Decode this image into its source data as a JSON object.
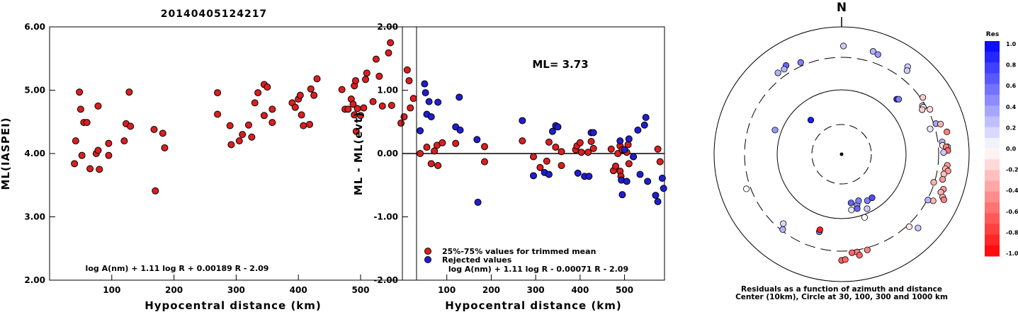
{
  "title": "20140405124217",
  "colors": {
    "red": "#dc1e1e",
    "blue": "#1e1ed2"
  },
  "chart_data": [
    {
      "type": "scatter",
      "xlabel": "Hypocentral distance (km)",
      "ylabel": "ML(IASPEI)",
      "xlim": [
        0,
        590
      ],
      "ylim": [
        2.0,
        6.0
      ],
      "x_ticks": [
        "100",
        "200",
        "300",
        "400",
        "500"
      ],
      "y_ticks": [
        "2.00",
        "3.00",
        "4.00",
        "5.00",
        "6.00"
      ],
      "equation": "log A(nm) + 1.11 log R + 0.00189 R - 2.09",
      "series": [
        {
          "color": "red",
          "points": [
            [
              40,
              3.84
            ],
            [
              42,
              4.2
            ],
            [
              48,
              4.97
            ],
            [
              50,
              4.7
            ],
            [
              52,
              3.97
            ],
            [
              55,
              4.49
            ],
            [
              60,
              4.49
            ],
            [
              65,
              3.76
            ],
            [
              75,
              4.0
            ],
            [
              78,
              4.75
            ],
            [
              78,
              4.05
            ],
            [
              80,
              3.75
            ],
            [
              95,
              4.16
            ],
            [
              95,
              3.97
            ],
            [
              120,
              4.2
            ],
            [
              123,
              4.47
            ],
            [
              128,
              4.97
            ],
            [
              130,
              4.43
            ],
            [
              168,
              4.38
            ],
            [
              170,
              3.41
            ],
            [
              182,
              4.32
            ],
            [
              185,
              4.09
            ],
            [
              270,
              4.62
            ],
            [
              270,
              4.96
            ],
            [
              290,
              4.44
            ],
            [
              292,
              4.14
            ],
            [
              305,
              4.2
            ],
            [
              310,
              4.3
            ],
            [
              320,
              4.45
            ],
            [
              325,
              4.26
            ],
            [
              330,
              4.8
            ],
            [
              335,
              4.96
            ],
            [
              345,
              4.6
            ],
            [
              345,
              5.09
            ],
            [
              350,
              5.05
            ],
            [
              358,
              4.49
            ],
            [
              358,
              4.7
            ],
            [
              390,
              4.8
            ],
            [
              395,
              4.73
            ],
            [
              400,
              4.86
            ],
            [
              403,
              4.92
            ],
            [
              405,
              4.61
            ],
            [
              408,
              4.44
            ],
            [
              418,
              4.46
            ],
            [
              420,
              5.02
            ],
            [
              425,
              4.92
            ],
            [
              430,
              5.18
            ],
            [
              470,
              5.01
            ],
            [
              475,
              4.7
            ],
            [
              480,
              4.7
            ],
            [
              485,
              4.86
            ],
            [
              488,
              4.78
            ],
            [
              490,
              5.07
            ],
            [
              490,
              4.61
            ],
            [
              492,
              5.15
            ],
            [
              493,
              4.35
            ],
            [
              495,
              4.71
            ],
            [
              500,
              4.6
            ],
            [
              505,
              4.72
            ],
            [
              508,
              5.17
            ],
            [
              510,
              5.27
            ],
            [
              520,
              4.82
            ],
            [
              525,
              5.49
            ],
            [
              530,
              5.22
            ],
            [
              535,
              4.75
            ],
            [
              545,
              5.59
            ],
            [
              548,
              5.75
            ],
            [
              550,
              4.76
            ],
            [
              565,
              4.48
            ],
            [
              570,
              4.58
            ],
            [
              575,
              5.32
            ],
            [
              578,
              5.15
            ],
            [
              580,
              4.72
            ],
            [
              585,
              4.87
            ]
          ]
        }
      ]
    },
    {
      "type": "scatter",
      "xlabel": "Hypocentral distance (km)",
      "ylabel": "ML - ML(evt)",
      "xlim": [
        0,
        590
      ],
      "ylim": [
        -2.0,
        2.0
      ],
      "x_ticks": [
        "100",
        "200",
        "300",
        "400",
        "500"
      ],
      "y_ticks": [
        "-2.00",
        "-1.00",
        "0.00",
        "1.00",
        "2.00"
      ],
      "reference_line": 0.0,
      "ml_label": "ML= 3.73",
      "legend": [
        "25%-75% values for trimmed mean",
        "Rejected values"
      ],
      "equation": "log A(nm) + 1.11 log R - 0.00071 R - 2.09",
      "series": [
        {
          "color": "red",
          "name": "25%-75% values for trimmed mean",
          "points": [
            [
              40,
              0.0
            ],
            [
              55,
              0.1
            ],
            [
              65,
              -0.16
            ],
            [
              72,
              0.04
            ],
            [
              78,
              0.13
            ],
            [
              80,
              -0.19
            ],
            [
              90,
              0.17
            ],
            [
              120,
              0.16
            ],
            [
              185,
              0.11
            ],
            [
              185,
              -0.13
            ],
            [
              270,
              0.2
            ],
            [
              295,
              -0.05
            ],
            [
              310,
              -0.22
            ],
            [
              325,
              -0.12
            ],
            [
              330,
              0.18
            ],
            [
              345,
              0.1
            ],
            [
              358,
              0.03
            ],
            [
              358,
              -0.19
            ],
            [
              390,
              0.06
            ],
            [
              393,
              0.12
            ],
            [
              400,
              0.17
            ],
            [
              403,
              0.02
            ],
            [
              418,
              0.02
            ],
            [
              425,
              0.19
            ],
            [
              430,
              0.08
            ],
            [
              470,
              0.07
            ],
            [
              475,
              -0.27
            ],
            [
              480,
              -0.2
            ],
            [
              485,
              0.0
            ],
            [
              490,
              0.12
            ],
            [
              490,
              -0.28
            ],
            [
              492,
              -0.36
            ],
            [
              495,
              0.06
            ],
            [
              505,
              0.02
            ],
            [
              508,
              0.14
            ],
            [
              510,
              -0.16
            ],
            [
              520,
              -0.05
            ],
            [
              575,
              0.07
            ],
            [
              580,
              -0.13
            ]
          ]
        },
        {
          "color": "blue",
          "name": "Rejected values",
          "points": [
            [
              40,
              0.36
            ],
            [
              50,
              1.1
            ],
            [
              52,
              0.96
            ],
            [
              55,
              0.62
            ],
            [
              60,
              0.82
            ],
            [
              65,
              0.58
            ],
            [
              80,
              0.81
            ],
            [
              120,
              0.42
            ],
            [
              128,
              0.89
            ],
            [
              130,
              0.37
            ],
            [
              168,
              0.22
            ],
            [
              170,
              -0.77
            ],
            [
              270,
              0.52
            ],
            [
              295,
              -0.35
            ],
            [
              320,
              -0.3
            ],
            [
              330,
              -0.33
            ],
            [
              338,
              0.35
            ],
            [
              345,
              0.44
            ],
            [
              350,
              0.42
            ],
            [
              395,
              -0.31
            ],
            [
              410,
              -0.36
            ],
            [
              420,
              -0.36
            ],
            [
              425,
              0.33
            ],
            [
              430,
              0.33
            ],
            [
              490,
              0.2
            ],
            [
              493,
              -0.42
            ],
            [
              495,
              -0.65
            ],
            [
              500,
              0.06
            ],
            [
              505,
              -0.44
            ],
            [
              510,
              0.23
            ],
            [
              520,
              -0.05
            ],
            [
              530,
              0.37
            ],
            [
              535,
              -0.33
            ],
            [
              545,
              0.45
            ],
            [
              548,
              0.57
            ],
            [
              552,
              -0.44
            ],
            [
              570,
              -0.66
            ],
            [
              575,
              -0.76
            ],
            [
              585,
              -0.39
            ],
            [
              588,
              -0.55
            ]
          ]
        }
      ]
    },
    {
      "type": "scatter",
      "subtype": "polar",
      "north_label": "N",
      "caption": [
        "Residuals as a function of azimuth and distance",
        "Center (10km), Circle at 30, 100, 300 and 1000 km"
      ],
      "colorbar": {
        "title": "Res",
        "ticks": [
          "1.0",
          "0.8",
          "0.6",
          "0.4",
          "0.2",
          "0.0",
          "-0.2",
          "-0.4",
          "-0.6",
          "-0.8",
          "-1.0"
        ]
      },
      "points": [
        {
          "az": 1,
          "r": 153,
          "res": 0.2
        },
        {
          "az": 17,
          "r": 152,
          "res": 0.3
        },
        {
          "az": 20,
          "r": 150,
          "res": 0.4
        },
        {
          "az": 336,
          "r": 142,
          "res": 0.5
        },
        {
          "az": 328,
          "r": 148,
          "res": 0.6
        },
        {
          "az": 326,
          "r": 145,
          "res": 0.3
        },
        {
          "az": 322,
          "r": 146,
          "res": 0.3
        },
        {
          "az": 37,
          "r": 155,
          "res": 0.2
        },
        {
          "az": 38,
          "r": 150,
          "res": 0.2
        },
        {
          "az": 318,
          "r": 65,
          "res": 0.9
        },
        {
          "az": 290,
          "r": 100,
          "res": 0.4
        },
        {
          "az": 45,
          "r": 110,
          "res": 0.8
        },
        {
          "az": 46,
          "r": 112,
          "res": 0.5
        },
        {
          "az": 55,
          "r": 140,
          "res": -0.2
        },
        {
          "az": 59,
          "r": 133,
          "res": 0.1
        },
        {
          "az": 60,
          "r": 133,
          "res": -0.1
        },
        {
          "az": 61,
          "r": 130,
          "res": -0.2
        },
        {
          "az": 63,
          "r": 140,
          "res": -0.15
        },
        {
          "az": 72,
          "r": 140,
          "res": 0.35
        },
        {
          "az": 73,
          "r": 146,
          "res": -0.3
        },
        {
          "az": 74,
          "r": 130,
          "res": 0.1
        },
        {
          "az": 78,
          "r": 152,
          "res": -0.5
        },
        {
          "az": 83,
          "r": 143,
          "res": 0.3
        },
        {
          "az": 85,
          "r": 143,
          "res": -0.1
        },
        {
          "az": 86,
          "r": 150,
          "res": 0.1
        },
        {
          "az": 86,
          "r": 148,
          "res": -0.5
        },
        {
          "az": 88,
          "r": 150,
          "res": -0.6
        },
        {
          "az": 89,
          "r": 144,
          "res": 0.2
        },
        {
          "az": 96,
          "r": 150,
          "res": -0.4
        },
        {
          "az": 98,
          "r": 148,
          "res": -0.3
        },
        {
          "az": 99,
          "r": 152,
          "res": -0.4
        },
        {
          "az": 101,
          "r": 147,
          "res": -0.25
        },
        {
          "az": 104,
          "r": 147,
          "res": -0.4
        },
        {
          "az": 107,
          "r": 136,
          "res": -0.3
        },
        {
          "az": 109,
          "r": 152,
          "res": -0.4
        },
        {
          "az": 111,
          "r": 150,
          "res": -0.3
        },
        {
          "az": 113,
          "r": 155,
          "res": -0.3
        },
        {
          "az": 114,
          "r": 158,
          "res": -0.5
        },
        {
          "az": 117,
          "r": 145,
          "res": -0.3
        },
        {
          "az": 118,
          "r": 138,
          "res": 0.3
        },
        {
          "az": 134,
          "r": 150,
          "res": 0.2
        },
        {
          "az": 137,
          "r": 140,
          "res": -0.1
        },
        {
          "az": 165,
          "r": 140,
          "res": -0.5
        },
        {
          "az": 171,
          "r": 140,
          "res": -0.5
        },
        {
          "az": 170,
          "r": 145,
          "res": -0.6
        },
        {
          "az": 174,
          "r": 140,
          "res": -0.6
        },
        {
          "az": 180,
          "r": 150,
          "res": -0.6
        },
        {
          "az": 178,
          "r": 149,
          "res": -0.6
        },
        {
          "az": 163,
          "r": 75,
          "res": 0.4
        },
        {
          "az": 160,
          "r": 70,
          "res": 0.5
        },
        {
          "az": 164,
          "r": 80,
          "res": 0.6
        },
        {
          "az": 170,
          "r": 80,
          "res": 0.1
        },
        {
          "az": 169,
          "r": 70,
          "res": 0.6
        },
        {
          "az": 151,
          "r": 75,
          "res": 0.5
        },
        {
          "az": 145,
          "r": 75,
          "res": 0.7
        },
        {
          "az": 155,
          "r": 85,
          "res": 0.2
        },
        {
          "az": 160,
          "r": 95,
          "res": 0.0
        },
        {
          "az": 196,
          "r": 114,
          "res": 0.5
        },
        {
          "az": 196,
          "r": 111,
          "res": -0.9
        },
        {
          "az": 218,
          "r": 135,
          "res": 0.3
        },
        {
          "az": 220,
          "r": 128,
          "res": 0.15
        },
        {
          "az": 250,
          "r": 143,
          "res": 0.0
        }
      ]
    }
  ]
}
